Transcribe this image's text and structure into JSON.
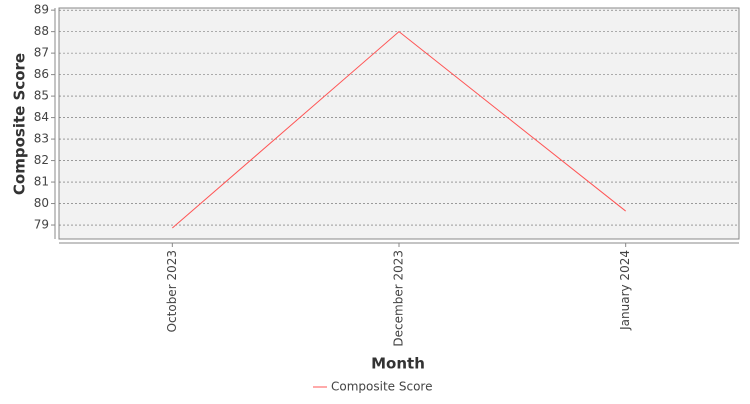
{
  "chart_data": {
    "type": "line",
    "x_label": "Month",
    "y_label": "Composite Score",
    "categories": [
      "October 2023",
      "December 2023",
      "January 2024"
    ],
    "series": [
      {
        "name": "Composite Score",
        "color": "#ff5555",
        "values": [
          78.86,
          88.0,
          79.65
        ]
      }
    ],
    "ylim": [
      78.35,
      89.1
    ],
    "yticks": [
      79,
      80,
      81,
      82,
      83,
      84,
      85,
      86,
      87,
      88,
      89
    ],
    "grid": true,
    "legend": "bottom"
  }
}
